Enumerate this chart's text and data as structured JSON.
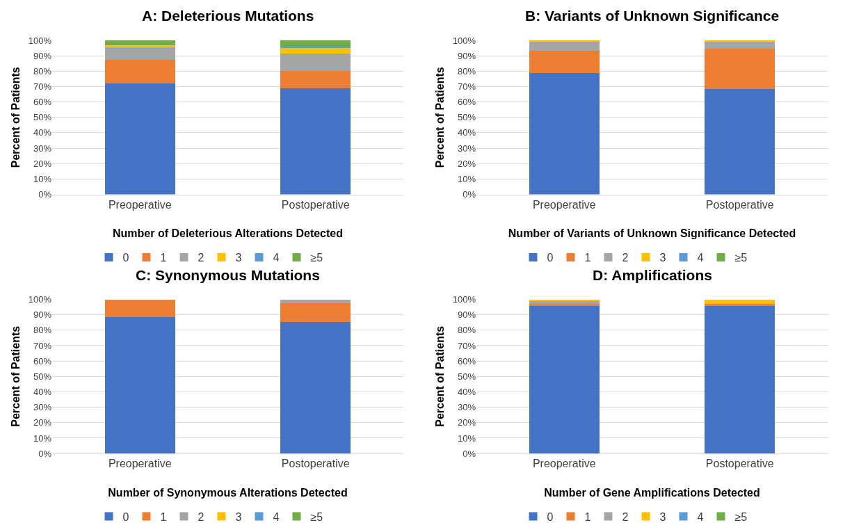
{
  "chart_data": [
    {
      "type": "bar",
      "stacked": true,
      "title": "A: Deleterious Mutations",
      "xlabel": "Number of Deleterious Alterations Detected",
      "ylabel": "Percent of Patients",
      "categories": [
        "Preoperative",
        "Postoperative"
      ],
      "ylim": [
        0,
        100
      ],
      "yticks": [
        {
          "value": 0,
          "label": "0%"
        },
        {
          "value": 10,
          "label": "10%"
        },
        {
          "value": 20,
          "label": "20%"
        },
        {
          "value": 30,
          "label": "30%"
        },
        {
          "value": 40,
          "label": "40%"
        },
        {
          "value": 50,
          "label": "50%"
        },
        {
          "value": 60,
          "label": "60%"
        },
        {
          "value": 70,
          "label": "70%"
        },
        {
          "value": 80,
          "label": "80%"
        },
        {
          "value": 90,
          "label": "90%"
        },
        {
          "value": 100,
          "label": "100%"
        }
      ],
      "grid": "y",
      "legend": "bottom",
      "series": [
        {
          "name": "0",
          "color": "#4472c4",
          "values": [
            72,
            69
          ]
        },
        {
          "name": "1",
          "color": "#ed7d31",
          "values": [
            15.5,
            11
          ]
        },
        {
          "name": "2",
          "color": "#a5a5a5",
          "values": [
            8,
            11.5
          ]
        },
        {
          "name": "3",
          "color": "#ffc000",
          "values": [
            1.5,
            3.5
          ]
        },
        {
          "name": "4",
          "color": "#5b9bd5",
          "values": [
            0,
            1
          ]
        },
        {
          "name": "≥5",
          "color": "#70ad47",
          "values": [
            3,
            4
          ]
        }
      ]
    },
    {
      "type": "bar",
      "stacked": true,
      "title": "B: Variants of Unknown Significance",
      "xlabel": "Number of Variants of Unknown Significance Detected",
      "ylabel": "Percent of Patients",
      "categories": [
        "Preoperative",
        "Postoperative"
      ],
      "ylim": [
        0,
        100
      ],
      "yticks": [
        {
          "value": 0,
          "label": "0%"
        },
        {
          "value": 10,
          "label": "10%"
        },
        {
          "value": 20,
          "label": "20%"
        },
        {
          "value": 30,
          "label": "30%"
        },
        {
          "value": 40,
          "label": "40%"
        },
        {
          "value": 50,
          "label": "50%"
        },
        {
          "value": 60,
          "label": "60%"
        },
        {
          "value": 70,
          "label": "70%"
        },
        {
          "value": 80,
          "label": "80%"
        },
        {
          "value": 90,
          "label": "90%"
        },
        {
          "value": 100,
          "label": "100%"
        }
      ],
      "grid": "y",
      "legend": "bottom",
      "series": [
        {
          "name": "0",
          "color": "#4472c4",
          "values": [
            79,
            68.5
          ]
        },
        {
          "name": "1",
          "color": "#ed7d31",
          "values": [
            14,
            26
          ]
        },
        {
          "name": "2",
          "color": "#a5a5a5",
          "values": [
            6,
            4.5
          ]
        },
        {
          "name": "3",
          "color": "#ffc000",
          "values": [
            1,
            1
          ]
        },
        {
          "name": "4",
          "color": "#5b9bd5",
          "values": [
            0,
            0
          ]
        },
        {
          "name": "≥5",
          "color": "#70ad47",
          "values": [
            0,
            0
          ]
        }
      ]
    },
    {
      "type": "bar",
      "stacked": true,
      "title": "C: Synonymous Mutations",
      "xlabel": "Number of Synonymous Alterations Detected",
      "ylabel": "Percent of Patients",
      "categories": [
        "Preoperative",
        "Postoperative"
      ],
      "ylim": [
        0,
        100
      ],
      "yticks": [
        {
          "value": 0,
          "label": "0%"
        },
        {
          "value": 10,
          "label": "10%"
        },
        {
          "value": 20,
          "label": "20%"
        },
        {
          "value": 30,
          "label": "30%"
        },
        {
          "value": 40,
          "label": "40%"
        },
        {
          "value": 50,
          "label": "50%"
        },
        {
          "value": 60,
          "label": "60%"
        },
        {
          "value": 70,
          "label": "70%"
        },
        {
          "value": 80,
          "label": "80%"
        },
        {
          "value": 90,
          "label": "90%"
        },
        {
          "value": 100,
          "label": "100%"
        }
      ],
      "grid": "y",
      "legend": "bottom",
      "series": [
        {
          "name": "0",
          "color": "#4472c4",
          "values": [
            88.5,
            85.5
          ]
        },
        {
          "name": "1",
          "color": "#ed7d31",
          "values": [
            11.5,
            12
          ]
        },
        {
          "name": "2",
          "color": "#a5a5a5",
          "values": [
            0,
            2.5
          ]
        },
        {
          "name": "3",
          "color": "#ffc000",
          "values": [
            0,
            0
          ]
        },
        {
          "name": "4",
          "color": "#5b9bd5",
          "values": [
            0,
            0
          ]
        },
        {
          "name": "≥5",
          "color": "#70ad47",
          "values": [
            0,
            0
          ]
        }
      ]
    },
    {
      "type": "bar",
      "stacked": true,
      "title": "D: Amplifications",
      "xlabel": "Number of Gene Amplifications Detected",
      "ylabel": "Percent of Patients",
      "categories": [
        "Preoperative",
        "Postoperative"
      ],
      "ylim": [
        0,
        100
      ],
      "yticks": [
        {
          "value": 0,
          "label": "0%"
        },
        {
          "value": 10,
          "label": "10%"
        },
        {
          "value": 20,
          "label": "20%"
        },
        {
          "value": 30,
          "label": "30%"
        },
        {
          "value": 40,
          "label": "40%"
        },
        {
          "value": 50,
          "label": "50%"
        },
        {
          "value": 60,
          "label": "60%"
        },
        {
          "value": 70,
          "label": "70%"
        },
        {
          "value": 80,
          "label": "80%"
        },
        {
          "value": 90,
          "label": "90%"
        },
        {
          "value": 100,
          "label": "100%"
        }
      ],
      "grid": "y",
      "legend": "bottom",
      "series": [
        {
          "name": "0",
          "color": "#4472c4",
          "values": [
            95.5,
            95.5
          ]
        },
        {
          "name": "1",
          "color": "#ed7d31",
          "values": [
            1.5,
            1.5
          ]
        },
        {
          "name": "2",
          "color": "#a5a5a5",
          "values": [
            2,
            0
          ]
        },
        {
          "name": "3",
          "color": "#ffc000",
          "values": [
            1,
            3
          ]
        },
        {
          "name": "4",
          "color": "#5b9bd5",
          "values": [
            0,
            0
          ]
        },
        {
          "name": "≥5",
          "color": "#70ad47",
          "values": [
            0,
            0
          ]
        }
      ]
    }
  ]
}
